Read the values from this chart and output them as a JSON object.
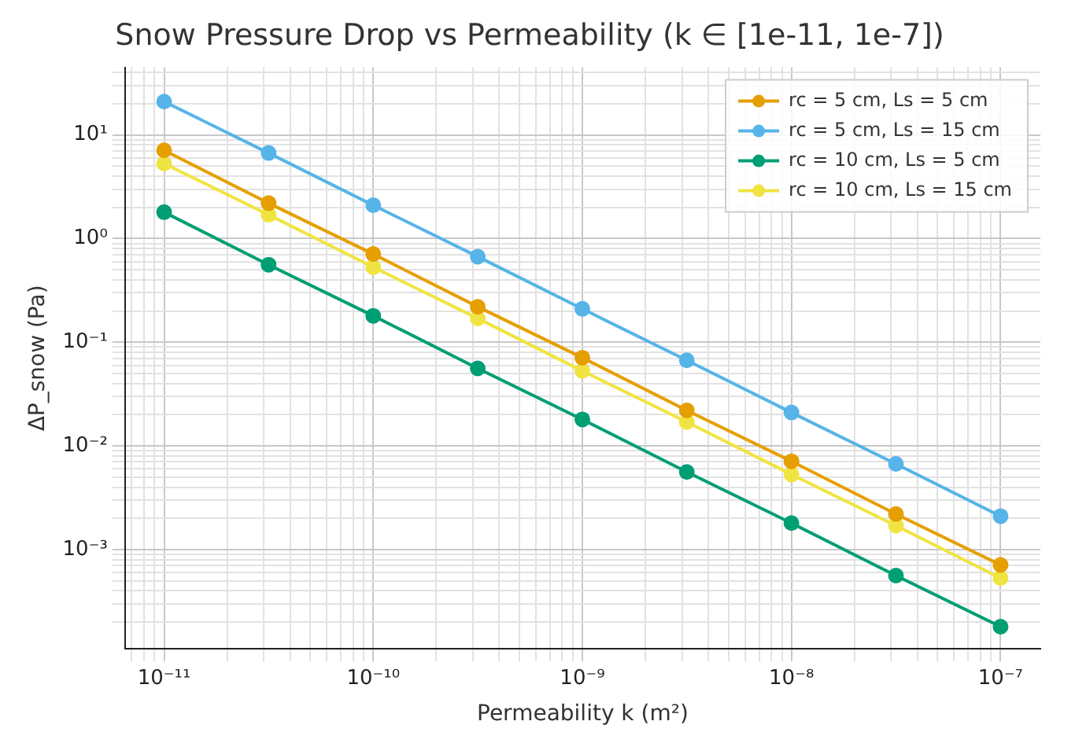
{
  "chart_data": {
    "type": "line",
    "title": "Snow Pressure Drop vs Permeability (k ∈ [1e-11, 1e-7])",
    "xlabel": "Permeability k (m²)",
    "ylabel": "ΔP_snow (Pa)",
    "x": [
      1e-11,
      3.16e-11,
      1e-10,
      3.16e-10,
      1e-09,
      3.16e-09,
      1e-08,
      3.16e-08,
      1e-07
    ],
    "series": [
      {
        "name": "rc = 5 cm, Ls = 5 cm",
        "color": "#e69f00",
        "values": [
          7.1,
          2.2,
          0.71,
          0.22,
          0.071,
          0.022,
          0.0071,
          0.0022,
          0.00071
        ]
      },
      {
        "name": "rc = 5 cm, Ls = 15 cm",
        "color": "#56b4e9",
        "values": [
          21,
          6.7,
          2.1,
          0.67,
          0.21,
          0.067,
          0.021,
          0.0067,
          0.0021
        ]
      },
      {
        "name": "rc = 10 cm, Ls = 5 cm",
        "color": "#009e73",
        "values": [
          1.8,
          0.56,
          0.18,
          0.056,
          0.018,
          0.0056,
          0.0018,
          0.00056,
          0.00018
        ]
      },
      {
        "name": "rc = 10 cm, Ls = 15 cm",
        "color": "#f0e442",
        "values": [
          5.3,
          1.7,
          0.53,
          0.17,
          0.053,
          0.017,
          0.0053,
          0.0017,
          0.00053
        ]
      }
    ],
    "log": "xy",
    "xlim": [
      6.5e-12,
      1.55e-07
    ],
    "ylim": [
      0.00011,
      45
    ],
    "xticks": [
      {
        "value": 1e-11,
        "label": "10⁻¹¹"
      },
      {
        "value": 1e-10,
        "label": "10⁻¹⁰"
      },
      {
        "value": 1e-09,
        "label": "10⁻⁹"
      },
      {
        "value": 1e-08,
        "label": "10⁻⁸"
      },
      {
        "value": 1e-07,
        "label": "10⁻⁷"
      }
    ],
    "yticks": [
      {
        "value": 0.001,
        "label": "10⁻³"
      },
      {
        "value": 0.01,
        "label": "10⁻²"
      },
      {
        "value": 0.1,
        "label": "10⁻¹"
      },
      {
        "value": 1,
        "label": "10⁰"
      },
      {
        "value": 10,
        "label": "10¹"
      }
    ],
    "grid": true,
    "legend": "top right",
    "marker": "circle",
    "line_style": "solid"
  }
}
